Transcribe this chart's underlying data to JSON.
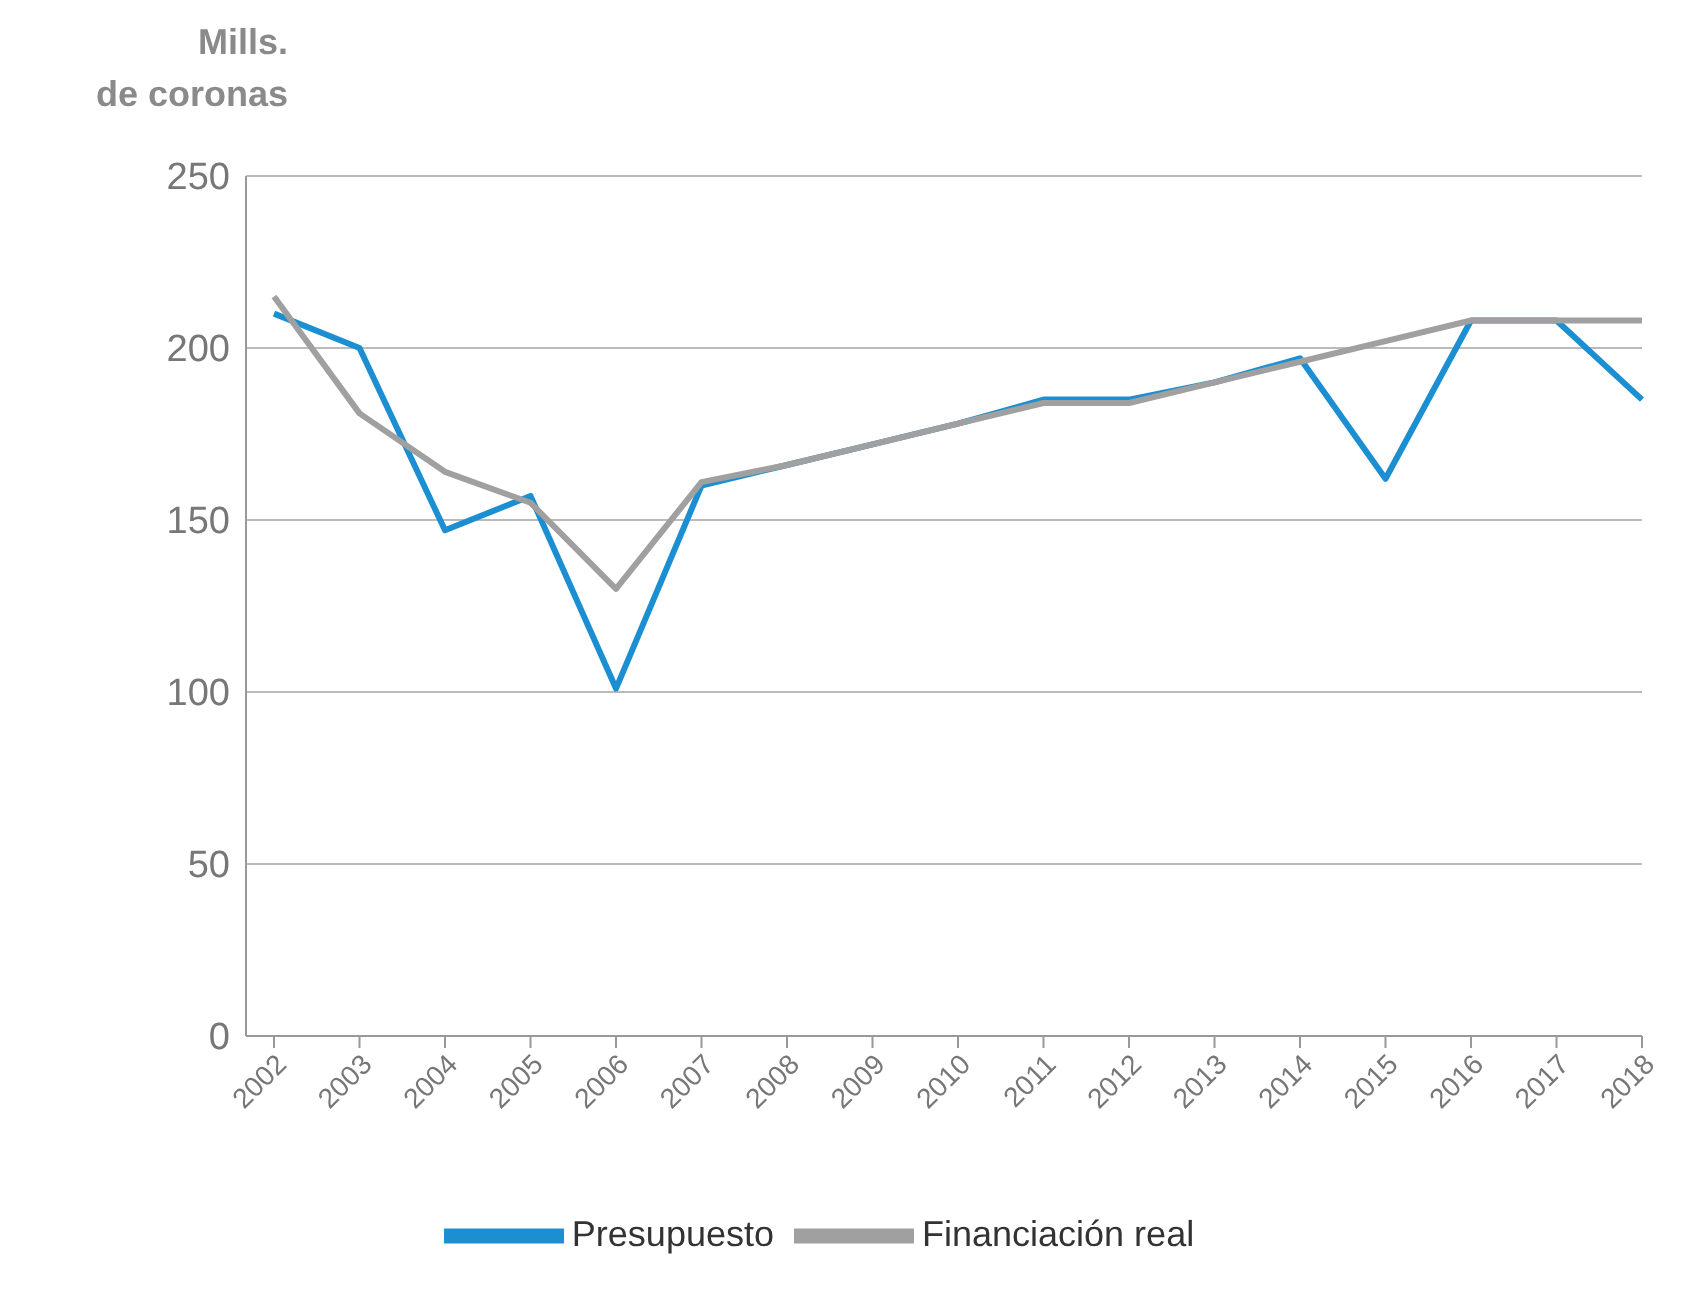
{
  "chart_data": {
    "type": "line",
    "ylabel": "Mills.\nde coronas",
    "categories": [
      "2002",
      "2003",
      "2004",
      "2005",
      "2006",
      "2007",
      "2008",
      "2009",
      "2010",
      "2011",
      "2012",
      "2013",
      "2014",
      "2015",
      "2016",
      "2017",
      "2018"
    ],
    "series": [
      {
        "name": "Presupuesto",
        "color": "#1b8fd2",
        "values": [
          210,
          200,
          147,
          157,
          101,
          160,
          166,
          172,
          178,
          185,
          185,
          190,
          197,
          162,
          208,
          208,
          185
        ]
      },
      {
        "name": "Financiación real",
        "color": "#a0a0a0",
        "values": [
          215,
          181,
          164,
          155,
          130,
          161,
          166,
          172,
          178,
          184,
          184,
          190,
          196,
          202,
          208,
          208,
          208
        ]
      }
    ],
    "ylim": [
      0,
      250
    ],
    "yticks": [
      0,
      50,
      100,
      150,
      200,
      250
    ],
    "grid": "y",
    "legend": "bottom",
    "marker": "none",
    "line_style": "solid"
  }
}
